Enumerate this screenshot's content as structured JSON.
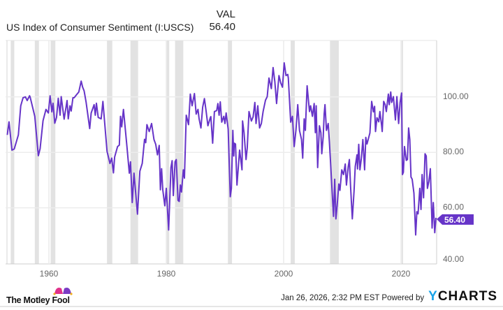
{
  "header": {
    "column_label": "VAL",
    "series_title": "US Index of Consumer Sentiment (I:USCS)",
    "latest_value": "56.40"
  },
  "footer": {
    "timestamp": "Jan 26, 2026, 2:32 PM EST",
    "powered_by": "Powered by",
    "brand": "YCHARTS",
    "logo_text": "The Motley Fool"
  },
  "colors": {
    "series": "#6634c8",
    "recession": "#e2e2e2",
    "grid": "#ececec",
    "brand_y": "#1aa3e8"
  },
  "chart_data": {
    "type": "line",
    "title": "US Index of Consumer Sentiment (I:USCS)",
    "xlim": [
      1952.8,
      2026.1
    ],
    "ylim": [
      40,
      115
    ],
    "x_ticks": [
      "1960",
      "1980",
      "2000",
      "2020"
    ],
    "y_ticks": [
      "40.00",
      "60.00",
      "80.00",
      "100.00"
    ],
    "y_axis_side": "right",
    "grid": true,
    "last_value_label": "56.40",
    "recessions": [
      [
        1953.5,
        1954.1
      ],
      [
        1957.6,
        1958.3
      ],
      [
        1960.3,
        1961.1
      ],
      [
        1969.9,
        1970.8
      ],
      [
        1973.9,
        1975.2
      ],
      [
        1980.0,
        1980.5
      ],
      [
        1981.5,
        1982.9
      ],
      [
        1990.5,
        1991.2
      ],
      [
        2001.2,
        2001.9
      ],
      [
        2007.9,
        2009.4
      ],
      [
        2020.1,
        2020.3
      ]
    ],
    "series": [
      {
        "points": [
          [
            1952.9,
            86.3
          ],
          [
            1953.2,
            91
          ],
          [
            1953.7,
            80.8
          ],
          [
            1954.1,
            81.2
          ],
          [
            1954.8,
            86.3
          ],
          [
            1955.2,
            96.8
          ],
          [
            1955.6,
            99.7
          ],
          [
            1956.0,
            100
          ],
          [
            1956.3,
            98.7
          ],
          [
            1956.7,
            100.4
          ],
          [
            1956.8,
            100
          ],
          [
            1957.6,
            93
          ],
          [
            1958.2,
            78.8
          ],
          [
            1958.5,
            81.3
          ],
          [
            1959.0,
            91.4
          ],
          [
            1959.5,
            95.5
          ],
          [
            1959.9,
            94.2
          ],
          [
            1960.2,
            100.4
          ],
          [
            1960.5,
            94.6
          ],
          [
            1960.7,
            97.7
          ],
          [
            1961.0,
            90.5
          ],
          [
            1961.3,
            92.6
          ],
          [
            1961.6,
            99.5
          ],
          [
            1961.9,
            93.4
          ],
          [
            1962.1,
            100.1
          ],
          [
            1962.6,
            92
          ],
          [
            1963.1,
            98.7
          ],
          [
            1963.3,
            92.1
          ],
          [
            1963.6,
            96.8
          ],
          [
            1963.8,
            94.9
          ],
          [
            1964.1,
            99.7
          ],
          [
            1964.3,
            99.7
          ],
          [
            1964.8,
            101
          ],
          [
            1965.1,
            101.8
          ],
          [
            1965.5,
            105.7
          ],
          [
            1965.75,
            103.5
          ],
          [
            1966.0,
            102.2
          ],
          [
            1966.35,
            98
          ],
          [
            1966.95,
            88.6
          ],
          [
            1967.2,
            94.2
          ],
          [
            1967.7,
            97.2
          ],
          [
            1967.9,
            93.4
          ],
          [
            1968.1,
            97.7
          ],
          [
            1968.4,
            92.6
          ],
          [
            1968.9,
            92.1
          ],
          [
            1969.2,
            98.4
          ],
          [
            1969.9,
            80.4
          ],
          [
            1970.4,
            76
          ],
          [
            1970.7,
            77.9
          ],
          [
            1971.0,
            72.6
          ],
          [
            1971.2,
            78.3
          ],
          [
            1971.7,
            82.1
          ],
          [
            1972.0,
            82.6
          ],
          [
            1972.2,
            93
          ],
          [
            1972.4,
            89.2
          ],
          [
            1972.7,
            95.5
          ],
          [
            1973.3,
            82.1
          ],
          [
            1973.7,
            72.5
          ],
          [
            1973.9,
            76.6
          ],
          [
            1974.2,
            61.9
          ],
          [
            1974.5,
            72.5
          ],
          [
            1975.1,
            57.7
          ],
          [
            1975.5,
            73.2
          ],
          [
            1975.9,
            76
          ],
          [
            1976.3,
            84.7
          ],
          [
            1976.5,
            83.5
          ],
          [
            1976.7,
            90
          ],
          [
            1977.1,
            87.5
          ],
          [
            1977.5,
            90.4
          ],
          [
            1977.9,
            84.6
          ],
          [
            1978.2,
            82.9
          ],
          [
            1978.5,
            79.1
          ],
          [
            1978.8,
            82.5
          ],
          [
            1979.0,
            66.5
          ],
          [
            1979.2,
            74.1
          ],
          [
            1979.4,
            66.5
          ],
          [
            1979.75,
            60.7
          ],
          [
            1980.0,
            67
          ],
          [
            1980.4,
            52
          ],
          [
            1980.8,
            74.5
          ],
          [
            1981.0,
            77
          ],
          [
            1981.2,
            64.4
          ],
          [
            1981.5,
            76.6
          ],
          [
            1981.7,
            77.4
          ],
          [
            1982.0,
            62.7
          ],
          [
            1982.2,
            62.3
          ],
          [
            1982.4,
            68.2
          ],
          [
            1982.6,
            65.7
          ],
          [
            1982.9,
            73.7
          ],
          [
            1983.1,
            70.7
          ],
          [
            1983.4,
            93.4
          ],
          [
            1983.8,
            90
          ],
          [
            1984.1,
            101
          ],
          [
            1984.4,
            96.8
          ],
          [
            1984.8,
            101.2
          ],
          [
            1985.1,
            93.8
          ],
          [
            1985.4,
            95.5
          ],
          [
            1985.6,
            92.1
          ],
          [
            1985.9,
            88.8
          ],
          [
            1986.2,
            96.3
          ],
          [
            1986.5,
            99.4
          ],
          [
            1986.8,
            94.7
          ],
          [
            1987.1,
            89.6
          ],
          [
            1987.5,
            92.5
          ],
          [
            1987.6,
            92.9
          ],
          [
            1987.9,
            83.3
          ],
          [
            1988.2,
            94.7
          ],
          [
            1988.6,
            95.1
          ],
          [
            1988.8,
            97.6
          ],
          [
            1989.0,
            93.4
          ],
          [
            1989.2,
            98.2
          ],
          [
            1989.45,
            90.9
          ],
          [
            1989.8,
            93
          ],
          [
            1990.0,
            90.4
          ],
          [
            1990.2,
            94.2
          ],
          [
            1990.55,
            88.4
          ],
          [
            1990.9,
            64
          ],
          [
            1991.1,
            67
          ],
          [
            1991.35,
            87.9
          ],
          [
            1991.5,
            78.7
          ],
          [
            1991.6,
            83.3
          ],
          [
            1991.8,
            83
          ],
          [
            1992.05,
            68.2
          ],
          [
            1992.3,
            75.3
          ],
          [
            1992.5,
            80.8
          ],
          [
            1992.9,
            73.7
          ],
          [
            1993.0,
            91.3
          ],
          [
            1993.25,
            87.1
          ],
          [
            1993.6,
            77.4
          ],
          [
            1993.8,
            81.6
          ],
          [
            1994.1,
            94.7
          ],
          [
            1994.5,
            91.3
          ],
          [
            1994.8,
            92.8
          ],
          [
            1995.1,
            98
          ],
          [
            1995.3,
            90.4
          ],
          [
            1995.6,
            96.8
          ],
          [
            1995.9,
            88.8
          ],
          [
            1996.2,
            90.4
          ],
          [
            1996.5,
            94.7
          ],
          [
            1996.9,
            98.8
          ],
          [
            1997.2,
            100.1
          ],
          [
            1997.5,
            106.8
          ],
          [
            1997.9,
            103
          ],
          [
            1998.2,
            110.6
          ],
          [
            1998.5,
            105.5
          ],
          [
            1998.8,
            97.6
          ],
          [
            1999.2,
            107.7
          ],
          [
            1999.5,
            105.1
          ],
          [
            1999.8,
            103.5
          ],
          [
            2000.1,
            112.3
          ],
          [
            2000.4,
            107.7
          ],
          [
            2000.7,
            108.1
          ],
          [
            2000.8,
            106.8
          ],
          [
            2001.2,
            90.9
          ],
          [
            2001.5,
            93
          ],
          [
            2001.8,
            82.1
          ],
          [
            2002.1,
            87.9
          ],
          [
            2002.4,
            97.2
          ],
          [
            2002.7,
            87.9
          ],
          [
            2003.05,
            84.6
          ],
          [
            2003.25,
            77.9
          ],
          [
            2003.5,
            92.1
          ],
          [
            2003.7,
            87.9
          ],
          [
            2004.0,
            104
          ],
          [
            2004.4,
            94.7
          ],
          [
            2004.6,
            96.8
          ],
          [
            2004.9,
            93
          ],
          [
            2005.2,
            97.6
          ],
          [
            2005.4,
            87.1
          ],
          [
            2005.55,
            96.8
          ],
          [
            2005.8,
            74.5
          ],
          [
            2006.1,
            89.6
          ],
          [
            2006.35,
            87.1
          ],
          [
            2006.5,
            79.5
          ],
          [
            2006.75,
            85.8
          ],
          [
            2006.9,
            93.8
          ],
          [
            2007.05,
            97.2
          ],
          [
            2007.3,
            87.9
          ],
          [
            2007.6,
            90.4
          ],
          [
            2007.8,
            83.7
          ],
          [
            2008.0,
            76.2
          ],
          [
            2008.3,
            64.4
          ],
          [
            2008.5,
            56.9
          ],
          [
            2008.7,
            70.3
          ],
          [
            2008.9,
            56
          ],
          [
            2009.1,
            60.2
          ],
          [
            2009.4,
            68.6
          ],
          [
            2009.6,
            66.3
          ],
          [
            2009.9,
            73.7
          ],
          [
            2010.2,
            72
          ],
          [
            2010.5,
            75.8
          ],
          [
            2010.7,
            68.2
          ],
          [
            2011.0,
            74.7
          ],
          [
            2011.2,
            77.4
          ],
          [
            2011.4,
            67.8
          ],
          [
            2011.7,
            56
          ],
          [
            2012.0,
            66.1
          ],
          [
            2012.2,
            74.9
          ],
          [
            2012.5,
            79.1
          ],
          [
            2012.6,
            74
          ],
          [
            2012.8,
            82.9
          ],
          [
            2013.0,
            73.7
          ],
          [
            2013.25,
            77.9
          ],
          [
            2013.5,
            84.6
          ],
          [
            2013.8,
            73.7
          ],
          [
            2014.0,
            85.4
          ],
          [
            2014.2,
            83
          ],
          [
            2014.4,
            84.6
          ],
          [
            2014.7,
            87
          ],
          [
            2015.0,
            98.4
          ],
          [
            2015.3,
            94.6
          ],
          [
            2015.5,
            96.6
          ],
          [
            2015.65,
            87.5
          ],
          [
            2015.9,
            92.5
          ],
          [
            2016.2,
            91
          ],
          [
            2016.4,
            94.7
          ],
          [
            2016.7,
            89.6
          ],
          [
            2016.8,
            87.5
          ],
          [
            2017.05,
            98.4
          ],
          [
            2017.3,
            97.2
          ],
          [
            2017.5,
            94.7
          ],
          [
            2017.85,
            101
          ],
          [
            2018.0,
            97.2
          ],
          [
            2018.25,
            101.8
          ],
          [
            2018.4,
            98
          ],
          [
            2018.7,
            100.1
          ],
          [
            2019.05,
            91.7
          ],
          [
            2019.3,
            100.1
          ],
          [
            2019.6,
            90.4
          ],
          [
            2019.85,
            98
          ],
          [
            2020.1,
            101.4
          ],
          [
            2020.25,
            72
          ],
          [
            2020.4,
            72.8
          ],
          [
            2020.6,
            82.1
          ],
          [
            2020.9,
            77.1
          ],
          [
            2021.1,
            77.4
          ],
          [
            2021.3,
            88.8
          ],
          [
            2021.5,
            84.6
          ],
          [
            2021.7,
            71.1
          ],
          [
            2021.9,
            70.3
          ],
          [
            2022.2,
            65.3
          ],
          [
            2022.5,
            50.2
          ],
          [
            2022.7,
            58.6
          ],
          [
            2022.9,
            57.8
          ],
          [
            2023.2,
            67
          ],
          [
            2023.4,
            59.4
          ],
          [
            2023.6,
            72
          ],
          [
            2023.85,
            63.6
          ],
          [
            2024.1,
            79.5
          ],
          [
            2024.3,
            78.7
          ],
          [
            2024.5,
            67
          ],
          [
            2024.75,
            69.5
          ],
          [
            2025.0,
            74.1
          ],
          [
            2025.3,
            52.7
          ],
          [
            2025.5,
            61.9
          ],
          [
            2025.75,
            51
          ],
          [
            2025.95,
            56.4
          ]
        ]
      }
    ]
  }
}
